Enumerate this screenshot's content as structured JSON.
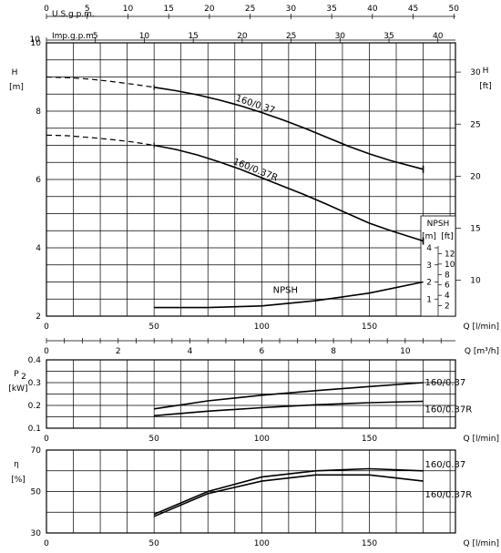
{
  "chart_data": [
    {
      "type": "line",
      "panel": "head",
      "ylabel": "H",
      "ylabel_unit": "[m]",
      "right_label": "H",
      "right_unit": "[ft]",
      "xlabel": "Q [l/min]",
      "xlim": [
        0,
        190
      ],
      "ylim": [
        2,
        10
      ],
      "x_ticks": [
        0,
        50,
        100,
        150
      ],
      "y_ticks": [
        2,
        4,
        6,
        8,
        10
      ],
      "right_ticks": [
        10,
        15,
        20,
        25,
        30
      ],
      "top_axes": [
        {
          "label": "U.S.g.p.m.",
          "ticks": [
            0,
            5,
            10,
            15,
            20,
            25,
            30,
            35,
            40,
            45,
            50
          ]
        },
        {
          "label": "Imp.g.p.m.",
          "ticks": [
            0,
            5,
            10,
            15,
            20,
            25,
            30,
            35,
            40
          ]
        }
      ],
      "series": [
        {
          "name": "160/0.37",
          "x": [
            0,
            10,
            20,
            30,
            40,
            50,
            60,
            70,
            80,
            90,
            100,
            110,
            120,
            130,
            140,
            150,
            160,
            175
          ],
          "values": [
            9.0,
            8.98,
            8.94,
            8.87,
            8.79,
            8.7,
            8.6,
            8.48,
            8.33,
            8.16,
            7.96,
            7.74,
            7.5,
            7.24,
            6.98,
            6.75,
            6.55,
            6.3
          ],
          "dashed_until_x": 50
        },
        {
          "name": "160/0.37R",
          "x": [
            0,
            10,
            20,
            30,
            40,
            50,
            60,
            70,
            80,
            90,
            100,
            110,
            120,
            130,
            140,
            150,
            160,
            175
          ],
          "values": [
            7.3,
            7.28,
            7.23,
            7.17,
            7.1,
            7.0,
            6.88,
            6.72,
            6.52,
            6.3,
            6.05,
            5.8,
            5.55,
            5.28,
            5.0,
            4.72,
            4.5,
            4.2
          ],
          "dashed_until_x": 50
        }
      ],
      "npsh": {
        "label": "NPSH",
        "header": "NPSH",
        "units": [
          "[m]",
          "[ft]"
        ],
        "m_ticks": [
          1,
          2,
          3,
          4
        ],
        "ft_ticks": [
          2,
          4,
          6,
          8,
          10,
          12
        ],
        "x": [
          50,
          75,
          100,
          125,
          150,
          175
        ],
        "values_m": [
          0.5,
          0.5,
          0.6,
          0.9,
          1.35,
          2.0
        ]
      },
      "flow_axis": {
        "label": "Q [m³/h]",
        "ticks": [
          0,
          2,
          4,
          6,
          8,
          10
        ]
      }
    },
    {
      "type": "line",
      "panel": "power",
      "ylabel": "P",
      "ylabel_sub": "2",
      "ylabel_unit": "[kW]",
      "xlabel": "Q [l/min]",
      "xlim": [
        0,
        190
      ],
      "ylim": [
        0.1,
        0.4
      ],
      "x_ticks": [
        0,
        50,
        100,
        150
      ],
      "y_ticks": [
        0.1,
        0.2,
        0.3,
        0.4
      ],
      "series": [
        {
          "name": "160/0.37",
          "x": [
            50,
            75,
            100,
            125,
            150,
            175
          ],
          "values": [
            0.185,
            0.22,
            0.245,
            0.265,
            0.283,
            0.3
          ]
        },
        {
          "name": "160/0.37R",
          "x": [
            50,
            75,
            100,
            125,
            150,
            175
          ],
          "values": [
            0.155,
            0.175,
            0.19,
            0.203,
            0.212,
            0.218
          ]
        }
      ]
    },
    {
      "type": "line",
      "panel": "efficiency",
      "ylabel": "η",
      "ylabel_unit": "[%]",
      "xlabel": "Q [l/min]",
      "xlim": [
        0,
        190
      ],
      "ylim": [
        30,
        70
      ],
      "x_ticks": [
        0,
        50,
        100,
        150
      ],
      "y_ticks": [
        30,
        50,
        70
      ],
      "series": [
        {
          "name": "160/0.37",
          "x": [
            50,
            75,
            100,
            125,
            150,
            175
          ],
          "values": [
            39,
            50,
            57,
            60,
            61,
            60
          ]
        },
        {
          "name": "160/0.37R",
          "x": [
            50,
            75,
            100,
            125,
            150,
            175
          ],
          "values": [
            38,
            49,
            55,
            58,
            58,
            55
          ]
        }
      ]
    }
  ]
}
